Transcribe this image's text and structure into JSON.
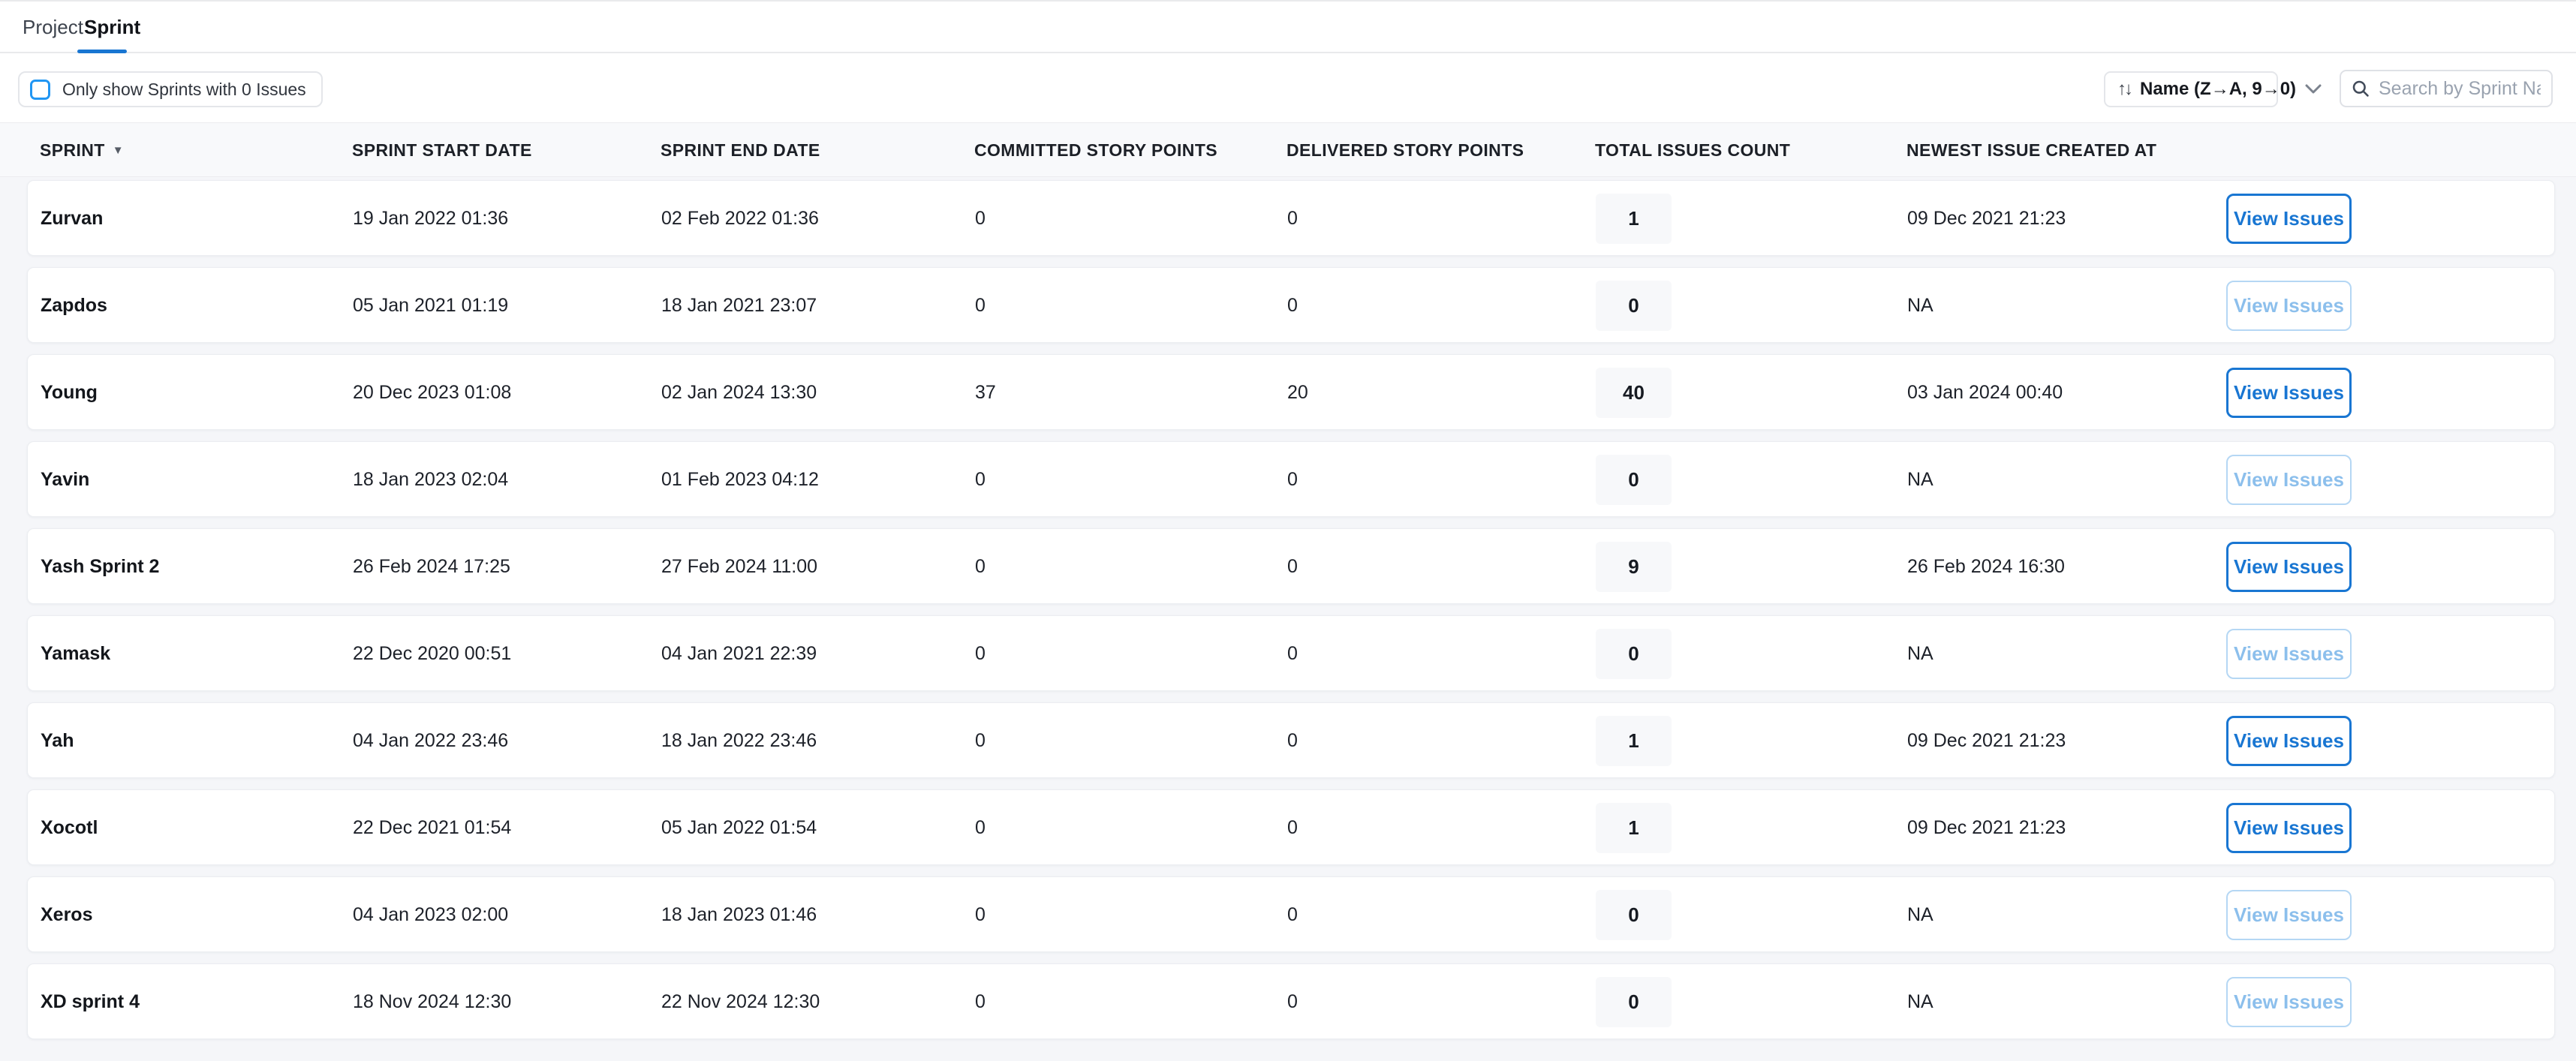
{
  "tabs": [
    {
      "label": "Project",
      "active": false
    },
    {
      "label": "Sprint",
      "active": true
    }
  ],
  "toolbar": {
    "filter_checkbox_label": "Only show Sprints with 0 Issues",
    "filter_checkbox_checked": false,
    "sort_label": "Name (Z→A, 9→0)",
    "search_placeholder": "Search by Sprint Name"
  },
  "table": {
    "columns": [
      "SPRINT",
      "SPRINT START DATE",
      "SPRINT END DATE",
      "COMMITTED STORY POINTS",
      "DELIVERED STORY POINTS",
      "TOTAL ISSUES COUNT",
      "NEWEST ISSUE CREATED AT"
    ],
    "sorted_column": "SPRINT",
    "action_label": "View Issues",
    "rows": [
      {
        "sprint": "Zurvan",
        "start": "19 Jan 2022 01:36",
        "end": "02 Feb 2022 01:36",
        "committed": "0",
        "delivered": "0",
        "total": "1",
        "newest": "09 Dec 2021 21:23",
        "action_enabled": true
      },
      {
        "sprint": "Zapdos",
        "start": "05 Jan 2021 01:19",
        "end": "18 Jan 2021 23:07",
        "committed": "0",
        "delivered": "0",
        "total": "0",
        "newest": "NA",
        "action_enabled": false
      },
      {
        "sprint": "Young",
        "start": "20 Dec 2023 01:08",
        "end": "02 Jan 2024 13:30",
        "committed": "37",
        "delivered": "20",
        "total": "40",
        "newest": "03 Jan 2024 00:40",
        "action_enabled": true
      },
      {
        "sprint": "Yavin",
        "start": "18 Jan 2023 02:04",
        "end": "01 Feb 2023 04:12",
        "committed": "0",
        "delivered": "0",
        "total": "0",
        "newest": "NA",
        "action_enabled": false
      },
      {
        "sprint": "Yash Sprint 2",
        "start": "26 Feb 2024 17:25",
        "end": "27 Feb 2024 11:00",
        "committed": "0",
        "delivered": "0",
        "total": "9",
        "newest": "26 Feb 2024 16:30",
        "action_enabled": true
      },
      {
        "sprint": "Yamask",
        "start": "22 Dec 2020 00:51",
        "end": "04 Jan 2021 22:39",
        "committed": "0",
        "delivered": "0",
        "total": "0",
        "newest": "NA",
        "action_enabled": false
      },
      {
        "sprint": "Yah",
        "start": "04 Jan 2022 23:46",
        "end": "18 Jan 2022 23:46",
        "committed": "0",
        "delivered": "0",
        "total": "1",
        "newest": "09 Dec 2021 21:23",
        "action_enabled": true
      },
      {
        "sprint": "Xocotl",
        "start": "22 Dec 2021 01:54",
        "end": "05 Jan 2022 01:54",
        "committed": "0",
        "delivered": "0",
        "total": "1",
        "newest": "09 Dec 2021 21:23",
        "action_enabled": true
      },
      {
        "sprint": "Xeros",
        "start": "04 Jan 2023 02:00",
        "end": "18 Jan 2023 01:46",
        "committed": "0",
        "delivered": "0",
        "total": "0",
        "newest": "NA",
        "action_enabled": false
      },
      {
        "sprint": "XD sprint 4",
        "start": "18 Nov 2024 12:30",
        "end": "22 Nov 2024 12:30",
        "committed": "0",
        "delivered": "0",
        "total": "0",
        "newest": "NA",
        "action_enabled": false
      }
    ]
  },
  "icons": {
    "sort_arrows": "↑↓",
    "sprint_sort_caret": "▼"
  },
  "colors": {
    "accent": "#1976d2",
    "tab_underline": "#1976d2",
    "checkbox_border": "#2196f3",
    "disabled_action": "#8cbfec",
    "header_band_bg": "#f8f9fb",
    "table_area_bg": "#f5f6f9",
    "badge_bg": "#f7f8fa"
  }
}
